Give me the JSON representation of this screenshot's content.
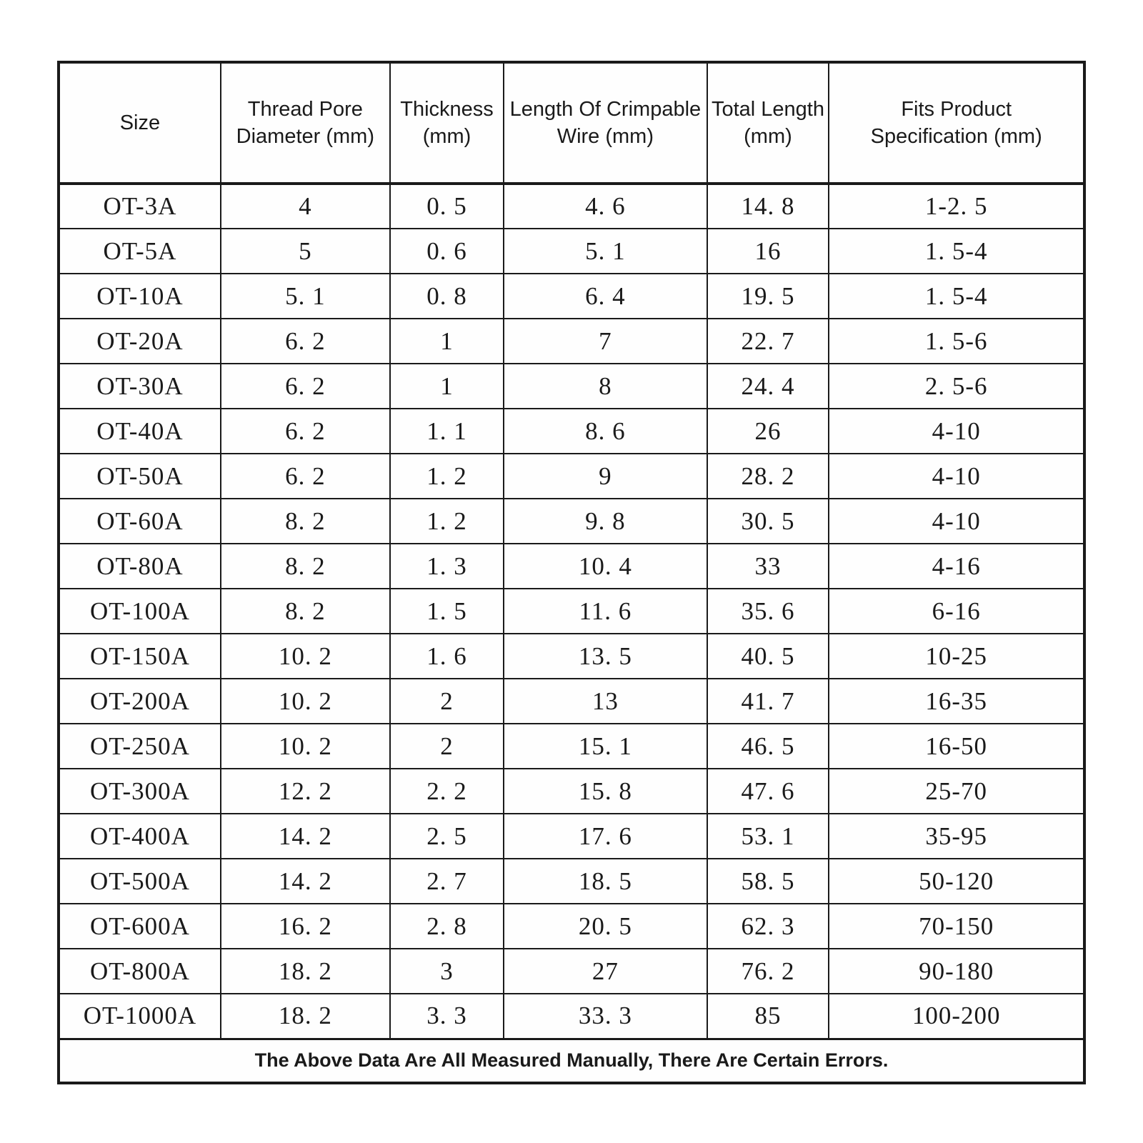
{
  "table": {
    "columns": [
      "Size",
      "Thread Pore\nDiameter (mm)",
      "Thickness\n(mm)",
      "Length Of Crimpable\nWire (mm)",
      "Total Length\n(mm)",
      "Fits Product\nSpecification (mm)"
    ],
    "rows": [
      [
        "OT-3A",
        "4",
        "0. 5",
        "4. 6",
        "14. 8",
        "1-2. 5"
      ],
      [
        "OT-5A",
        "5",
        "0. 6",
        "5. 1",
        "16",
        "1. 5-4"
      ],
      [
        "OT-10A",
        "5. 1",
        "0. 8",
        "6. 4",
        "19. 5",
        "1. 5-4"
      ],
      [
        "OT-20A",
        "6. 2",
        "1",
        "7",
        "22. 7",
        "1. 5-6"
      ],
      [
        "OT-30A",
        "6. 2",
        "1",
        "8",
        "24. 4",
        "2. 5-6"
      ],
      [
        "OT-40A",
        "6. 2",
        "1. 1",
        "8. 6",
        "26",
        "4-10"
      ],
      [
        "OT-50A",
        "6. 2",
        "1. 2",
        "9",
        "28. 2",
        "4-10"
      ],
      [
        "OT-60A",
        "8. 2",
        "1. 2",
        "9. 8",
        "30. 5",
        "4-10"
      ],
      [
        "OT-80A",
        "8. 2",
        "1. 3",
        "10. 4",
        "33",
        "4-16"
      ],
      [
        "OT-100A",
        "8. 2",
        "1. 5",
        "11. 6",
        "35. 6",
        "6-16"
      ],
      [
        "OT-150A",
        "10. 2",
        "1. 6",
        "13. 5",
        "40. 5",
        "10-25"
      ],
      [
        "OT-200A",
        "10. 2",
        "2",
        "13",
        "41. 7",
        "16-35"
      ],
      [
        "OT-250A",
        "10. 2",
        "2",
        "15. 1",
        "46. 5",
        "16-50"
      ],
      [
        "OT-300A",
        "12. 2",
        "2. 2",
        "15. 8",
        "47. 6",
        "25-70"
      ],
      [
        "OT-400A",
        "14. 2",
        "2. 5",
        "17. 6",
        "53. 1",
        "35-95"
      ],
      [
        "OT-500A",
        "14. 2",
        "2. 7",
        "18. 5",
        "58. 5",
        "50-120"
      ],
      [
        "OT-600A",
        "16. 2",
        "2. 8",
        "20. 5",
        "62. 3",
        "70-150"
      ],
      [
        "OT-800A",
        "18. 2",
        "3",
        "27",
        "76. 2",
        "90-180"
      ],
      [
        "OT-1000A",
        "18. 2",
        "3. 3",
        "33. 3",
        "85",
        "100-200"
      ]
    ],
    "footer": "The Above Data Are All Measured Manually, There Are Certain Errors."
  }
}
